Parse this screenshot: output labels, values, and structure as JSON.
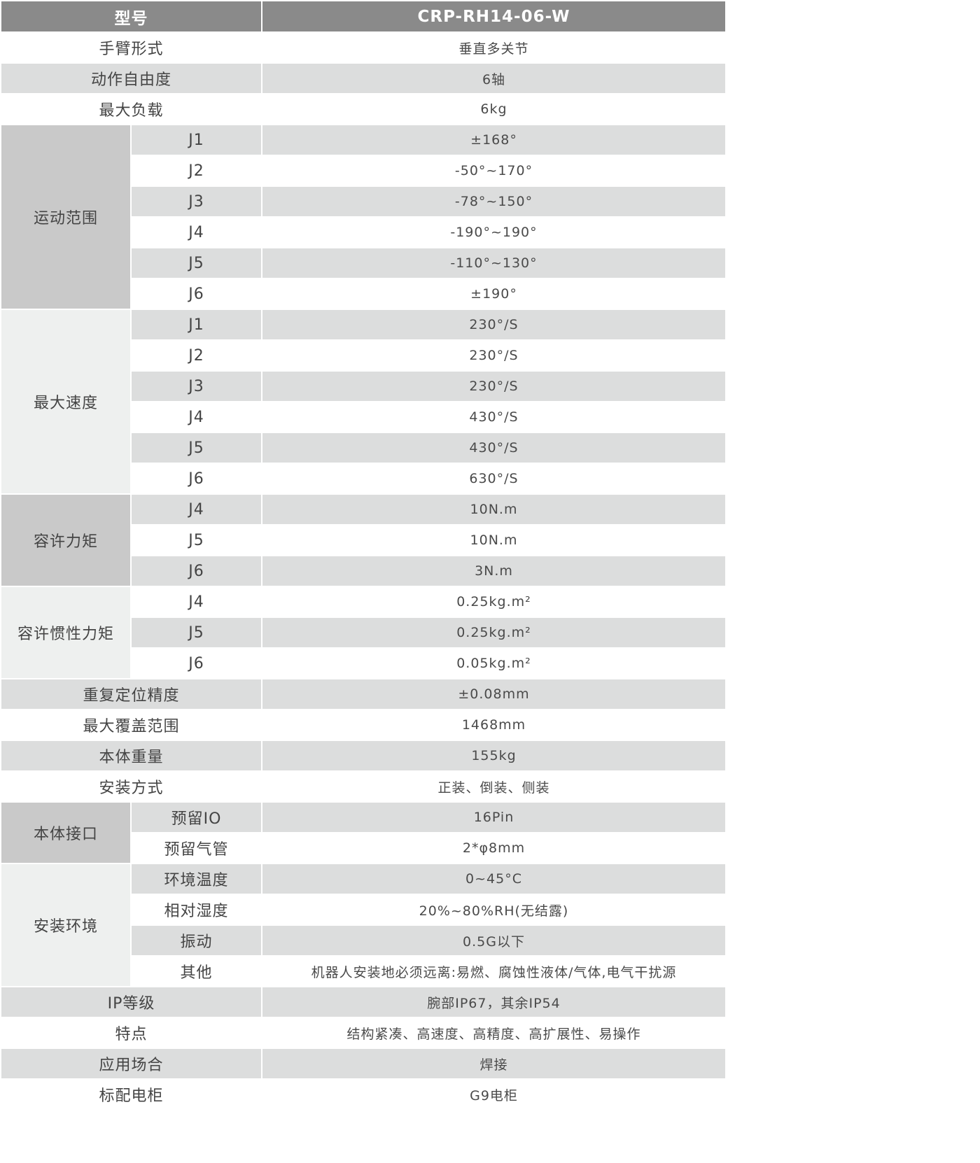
{
  "header": {
    "label": "型号",
    "model": "CRP-RH14-06-W"
  },
  "colors": {
    "header_bg": "#8a8a8a",
    "stripe": "#dcdddd",
    "group_dark": "#c9c9c9",
    "group_light": "#eef0ef"
  },
  "rows": [
    {
      "label": "手臂形式",
      "value": "垂直多关节"
    },
    {
      "label": "动作自由度",
      "value": "6轴"
    },
    {
      "label": "最大负载",
      "value": "6kg"
    },
    {
      "group": "运动范围",
      "shade": "dark",
      "items": [
        {
          "label": "J1",
          "value": "±168°"
        },
        {
          "label": "J2",
          "value": "-50°~170°"
        },
        {
          "label": "J3",
          "value": "-78°~150°"
        },
        {
          "label": "J4",
          "value": "-190°~190°"
        },
        {
          "label": "J5",
          "value": "-110°~130°"
        },
        {
          "label": "J6",
          "value": "±190°"
        }
      ]
    },
    {
      "group": "最大速度",
      "shade": "light",
      "items": [
        {
          "label": "J1",
          "value": "230°/S"
        },
        {
          "label": "J2",
          "value": "230°/S"
        },
        {
          "label": "J3",
          "value": "230°/S"
        },
        {
          "label": "J4",
          "value": "430°/S"
        },
        {
          "label": "J5",
          "value": "430°/S"
        },
        {
          "label": "J6",
          "value": "630°/S"
        }
      ]
    },
    {
      "group": "容许力矩",
      "shade": "dark",
      "items": [
        {
          "label": "J4",
          "value": "10N.m"
        },
        {
          "label": "J5",
          "value": "10N.m"
        },
        {
          "label": "J6",
          "value": "3N.m"
        }
      ]
    },
    {
      "group": "容许惯性力矩",
      "shade": "light",
      "items": [
        {
          "label": "J4",
          "value": "0.25kg.m²"
        },
        {
          "label": "J5",
          "value": "0.25kg.m²"
        },
        {
          "label": "J6",
          "value": "0.05kg.m²"
        }
      ]
    },
    {
      "label": "重复定位精度",
      "value": "±0.08mm"
    },
    {
      "label": "最大覆盖范围",
      "value": "1468mm"
    },
    {
      "label": "本体重量",
      "value": "155kg"
    },
    {
      "label": "安装方式",
      "value": "正装、倒装、侧装"
    },
    {
      "group": "本体接口",
      "shade": "dark",
      "items": [
        {
          "label": "预留IO",
          "value": "16Pin"
        },
        {
          "label": "预留气管",
          "value": "2*φ8mm"
        }
      ]
    },
    {
      "group": "安装环境",
      "shade": "light",
      "items": [
        {
          "label": "环境温度",
          "value": "0~45°C"
        },
        {
          "label": "相对湿度",
          "value": "20%~80%RH(无结露)"
        },
        {
          "label": "振动",
          "value": "0.5G以下"
        },
        {
          "label": "其他",
          "value": "机器人安装地必须远离:易燃、腐蚀性液体/气体,电气干扰源"
        }
      ]
    },
    {
      "label": "IP等级",
      "value": "腕部IP67，其余IP54"
    },
    {
      "label": "特点",
      "value": "结构紧凑、高速度、高精度、高扩展性、易操作"
    },
    {
      "label": "应用场合",
      "value": "焊接"
    },
    {
      "label": "标配电柜",
      "value": "G9电柜"
    }
  ]
}
